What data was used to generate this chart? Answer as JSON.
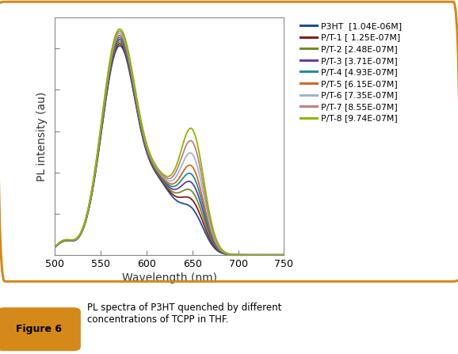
{
  "xlabel": "Wavelength (nm)",
  "ylabel": "PL intensity (au)",
  "xlim": [
    500,
    750
  ],
  "ylim": [
    0,
    1.15
  ],
  "x_ticks": [
    500,
    550,
    600,
    650,
    700,
    750
  ],
  "legend_entries": [
    {
      "label": "P3HT  [1.04E-06M]",
      "color": "#1F4E9C"
    },
    {
      "label": "P/T-1 [ 1.25E-07M]",
      "color": "#8B1A1A"
    },
    {
      "label": "P/T-2 [2.48E-07M]",
      "color": "#6B8E23"
    },
    {
      "label": "P/T-3 [3.71E-07M]",
      "color": "#6A3D9A"
    },
    {
      "label": "P/T-4 [4.93E-07M]",
      "color": "#1B8FA0"
    },
    {
      "label": "P/T-5 [6.15E-07M]",
      "color": "#D2691E"
    },
    {
      "label": "P/T-6 [7.35E-07M]",
      "color": "#9FB6CD"
    },
    {
      "label": "P/T-7 [8.55E-07M]",
      "color": "#C08080"
    },
    {
      "label": "P/T-8 [9.74E-07M]",
      "color": "#8DB600"
    }
  ],
  "scales_main": [
    1.0,
    1.01,
    1.02,
    1.03,
    1.04,
    1.05,
    1.06,
    1.07,
    1.08
  ],
  "scales_sec": [
    0.18,
    0.22,
    0.26,
    0.3,
    0.34,
    0.38,
    0.44,
    0.5,
    0.56
  ],
  "caption_label": "Figure 6",
  "caption_text": "PL spectra of P3HT quenched by different\nconcentrations of TCPP in THF.",
  "border_color": "#D4891A"
}
